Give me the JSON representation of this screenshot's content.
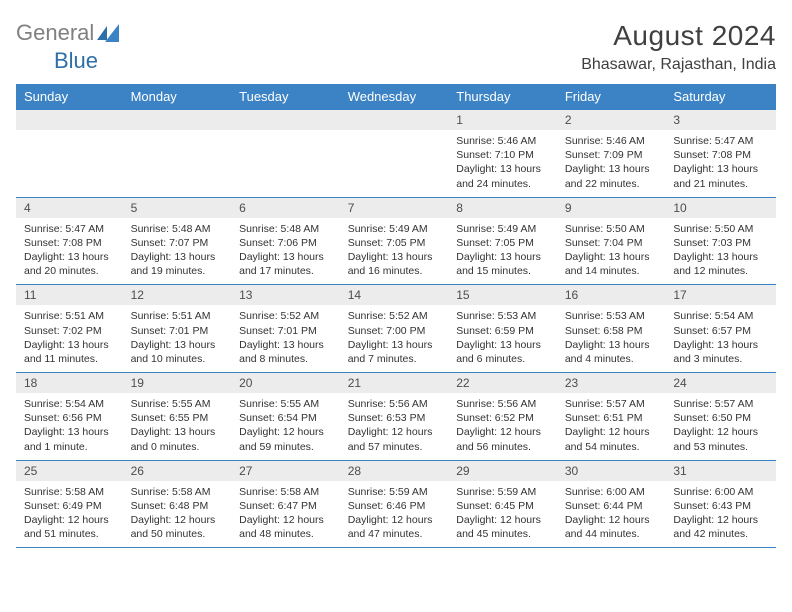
{
  "logo": {
    "part1": "General",
    "part2": "Blue"
  },
  "title": "August 2024",
  "location": "Bhasawar, Rajasthan, India",
  "colors": {
    "header_bg": "#3b83c4",
    "header_text": "#ffffff",
    "daynum_bg": "#ececec",
    "border": "#3b83c4",
    "body_text": "#333333",
    "title_text": "#404040"
  },
  "day_names": [
    "Sunday",
    "Monday",
    "Tuesday",
    "Wednesday",
    "Thursday",
    "Friday",
    "Saturday"
  ],
  "weeks": [
    [
      {
        "num": "",
        "lines": []
      },
      {
        "num": "",
        "lines": []
      },
      {
        "num": "",
        "lines": []
      },
      {
        "num": "",
        "lines": []
      },
      {
        "num": "1",
        "lines": [
          "Sunrise: 5:46 AM",
          "Sunset: 7:10 PM",
          "Daylight: 13 hours",
          "and 24 minutes."
        ]
      },
      {
        "num": "2",
        "lines": [
          "Sunrise: 5:46 AM",
          "Sunset: 7:09 PM",
          "Daylight: 13 hours",
          "and 22 minutes."
        ]
      },
      {
        "num": "3",
        "lines": [
          "Sunrise: 5:47 AM",
          "Sunset: 7:08 PM",
          "Daylight: 13 hours",
          "and 21 minutes."
        ]
      }
    ],
    [
      {
        "num": "4",
        "lines": [
          "Sunrise: 5:47 AM",
          "Sunset: 7:08 PM",
          "Daylight: 13 hours",
          "and 20 minutes."
        ]
      },
      {
        "num": "5",
        "lines": [
          "Sunrise: 5:48 AM",
          "Sunset: 7:07 PM",
          "Daylight: 13 hours",
          "and 19 minutes."
        ]
      },
      {
        "num": "6",
        "lines": [
          "Sunrise: 5:48 AM",
          "Sunset: 7:06 PM",
          "Daylight: 13 hours",
          "and 17 minutes."
        ]
      },
      {
        "num": "7",
        "lines": [
          "Sunrise: 5:49 AM",
          "Sunset: 7:05 PM",
          "Daylight: 13 hours",
          "and 16 minutes."
        ]
      },
      {
        "num": "8",
        "lines": [
          "Sunrise: 5:49 AM",
          "Sunset: 7:05 PM",
          "Daylight: 13 hours",
          "and 15 minutes."
        ]
      },
      {
        "num": "9",
        "lines": [
          "Sunrise: 5:50 AM",
          "Sunset: 7:04 PM",
          "Daylight: 13 hours",
          "and 14 minutes."
        ]
      },
      {
        "num": "10",
        "lines": [
          "Sunrise: 5:50 AM",
          "Sunset: 7:03 PM",
          "Daylight: 13 hours",
          "and 12 minutes."
        ]
      }
    ],
    [
      {
        "num": "11",
        "lines": [
          "Sunrise: 5:51 AM",
          "Sunset: 7:02 PM",
          "Daylight: 13 hours",
          "and 11 minutes."
        ]
      },
      {
        "num": "12",
        "lines": [
          "Sunrise: 5:51 AM",
          "Sunset: 7:01 PM",
          "Daylight: 13 hours",
          "and 10 minutes."
        ]
      },
      {
        "num": "13",
        "lines": [
          "Sunrise: 5:52 AM",
          "Sunset: 7:01 PM",
          "Daylight: 13 hours",
          "and 8 minutes."
        ]
      },
      {
        "num": "14",
        "lines": [
          "Sunrise: 5:52 AM",
          "Sunset: 7:00 PM",
          "Daylight: 13 hours",
          "and 7 minutes."
        ]
      },
      {
        "num": "15",
        "lines": [
          "Sunrise: 5:53 AM",
          "Sunset: 6:59 PM",
          "Daylight: 13 hours",
          "and 6 minutes."
        ]
      },
      {
        "num": "16",
        "lines": [
          "Sunrise: 5:53 AM",
          "Sunset: 6:58 PM",
          "Daylight: 13 hours",
          "and 4 minutes."
        ]
      },
      {
        "num": "17",
        "lines": [
          "Sunrise: 5:54 AM",
          "Sunset: 6:57 PM",
          "Daylight: 13 hours",
          "and 3 minutes."
        ]
      }
    ],
    [
      {
        "num": "18",
        "lines": [
          "Sunrise: 5:54 AM",
          "Sunset: 6:56 PM",
          "Daylight: 13 hours",
          "and 1 minute."
        ]
      },
      {
        "num": "19",
        "lines": [
          "Sunrise: 5:55 AM",
          "Sunset: 6:55 PM",
          "Daylight: 13 hours",
          "and 0 minutes."
        ]
      },
      {
        "num": "20",
        "lines": [
          "Sunrise: 5:55 AM",
          "Sunset: 6:54 PM",
          "Daylight: 12 hours",
          "and 59 minutes."
        ]
      },
      {
        "num": "21",
        "lines": [
          "Sunrise: 5:56 AM",
          "Sunset: 6:53 PM",
          "Daylight: 12 hours",
          "and 57 minutes."
        ]
      },
      {
        "num": "22",
        "lines": [
          "Sunrise: 5:56 AM",
          "Sunset: 6:52 PM",
          "Daylight: 12 hours",
          "and 56 minutes."
        ]
      },
      {
        "num": "23",
        "lines": [
          "Sunrise: 5:57 AM",
          "Sunset: 6:51 PM",
          "Daylight: 12 hours",
          "and 54 minutes."
        ]
      },
      {
        "num": "24",
        "lines": [
          "Sunrise: 5:57 AM",
          "Sunset: 6:50 PM",
          "Daylight: 12 hours",
          "and 53 minutes."
        ]
      }
    ],
    [
      {
        "num": "25",
        "lines": [
          "Sunrise: 5:58 AM",
          "Sunset: 6:49 PM",
          "Daylight: 12 hours",
          "and 51 minutes."
        ]
      },
      {
        "num": "26",
        "lines": [
          "Sunrise: 5:58 AM",
          "Sunset: 6:48 PM",
          "Daylight: 12 hours",
          "and 50 minutes."
        ]
      },
      {
        "num": "27",
        "lines": [
          "Sunrise: 5:58 AM",
          "Sunset: 6:47 PM",
          "Daylight: 12 hours",
          "and 48 minutes."
        ]
      },
      {
        "num": "28",
        "lines": [
          "Sunrise: 5:59 AM",
          "Sunset: 6:46 PM",
          "Daylight: 12 hours",
          "and 47 minutes."
        ]
      },
      {
        "num": "29",
        "lines": [
          "Sunrise: 5:59 AM",
          "Sunset: 6:45 PM",
          "Daylight: 12 hours",
          "and 45 minutes."
        ]
      },
      {
        "num": "30",
        "lines": [
          "Sunrise: 6:00 AM",
          "Sunset: 6:44 PM",
          "Daylight: 12 hours",
          "and 44 minutes."
        ]
      },
      {
        "num": "31",
        "lines": [
          "Sunrise: 6:00 AM",
          "Sunset: 6:43 PM",
          "Daylight: 12 hours",
          "and 42 minutes."
        ]
      }
    ]
  ]
}
